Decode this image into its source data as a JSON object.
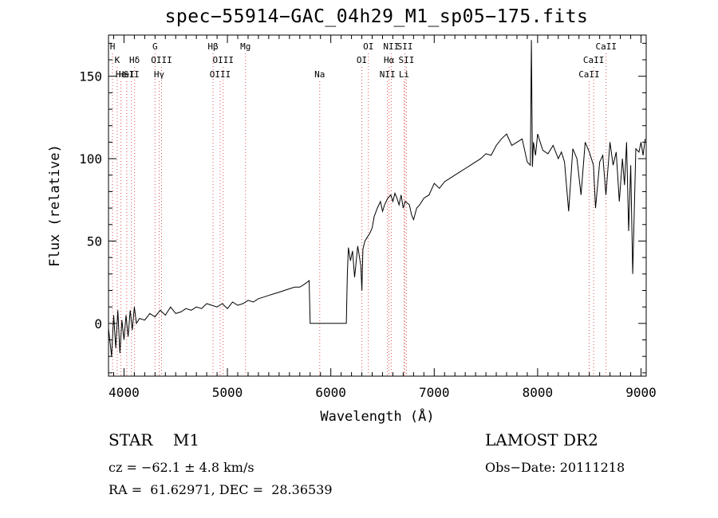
{
  "chart_data": {
    "type": "line",
    "title": "spec−55914−GAC_04h29_M1_sp05−175.fits",
    "xlabel": "Wavelength (Å)",
    "ylabel": "Flux (relative)",
    "xlim": [
      3850,
      9050
    ],
    "ylim": [
      -32,
      175
    ],
    "xticks": [
      4000,
      5000,
      6000,
      7000,
      8000,
      9000
    ],
    "yticks": [
      0,
      50,
      100,
      150
    ],
    "grid": false,
    "series": [
      {
        "x": [
          3850,
          3880,
          3900,
          3920,
          3940,
          3960,
          3980,
          4000,
          4020,
          4040,
          4060,
          4080,
          4100,
          4120,
          4150,
          4200,
          4250,
          4300,
          4350,
          4400,
          4450,
          4500,
          4550,
          4600,
          4650,
          4700,
          4750,
          4800,
          4850,
          4900,
          4950,
          5000,
          5050,
          5100,
          5150,
          5200,
          5250,
          5300,
          5350,
          5400,
          5450,
          5500,
          5550,
          5600,
          5650,
          5700,
          5750,
          5790,
          5800,
          5810,
          6150,
          6160,
          6170,
          6190,
          6210,
          6230,
          6260,
          6290,
          6300,
          6310,
          6330,
          6350,
          6380,
          6400,
          6420,
          6450,
          6480,
          6500,
          6520,
          6550,
          6580,
          6600,
          6620,
          6640,
          6660,
          6680,
          6700,
          6720,
          6740,
          6760,
          6780,
          6800,
          6830,
          6860,
          6900,
          6950,
          7000,
          7050,
          7100,
          7150,
          7200,
          7250,
          7300,
          7350,
          7400,
          7450,
          7500,
          7550,
          7600,
          7650,
          7700,
          7750,
          7800,
          7850,
          7900,
          7930,
          7940,
          7950,
          7960,
          7980,
          8000,
          8050,
          8100,
          8150,
          8200,
          8230,
          8260,
          8300,
          8340,
          8380,
          8420,
          8460,
          8500,
          8540,
          8560,
          8600,
          8630,
          8660,
          8700,
          8730,
          8760,
          8790,
          8820,
          8840,
          8860,
          8880,
          8900,
          8920,
          8950,
          8980,
          9000,
          9020,
          9040
        ],
        "y": [
          -3,
          -20,
          5,
          -15,
          8,
          -18,
          2,
          -10,
          5,
          -8,
          8,
          -4,
          10,
          0,
          3,
          2,
          6,
          4,
          8,
          5,
          10,
          6,
          7,
          9,
          8,
          10,
          9,
          12,
          11,
          10,
          12,
          9,
          13,
          11,
          12,
          14,
          13,
          15,
          16,
          17,
          18,
          19,
          20,
          21,
          22,
          22,
          24,
          26,
          0,
          0,
          0,
          30,
          46,
          38,
          44,
          28,
          47,
          35,
          20,
          45,
          50,
          52,
          55,
          58,
          65,
          70,
          74,
          68,
          72,
          76,
          78,
          74,
          79,
          76,
          72,
          78,
          70,
          74,
          73,
          72,
          66,
          63,
          70,
          72,
          76,
          78,
          85,
          82,
          86,
          88,
          90,
          92,
          94,
          96,
          98,
          100,
          103,
          102,
          108,
          112,
          115,
          108,
          110,
          112,
          98,
          96,
          172,
          95,
          110,
          102,
          115,
          105,
          103,
          108,
          100,
          104,
          98,
          68,
          106,
          100,
          78,
          110,
          104,
          96,
          70,
          98,
          102,
          78,
          110,
          96,
          104,
          74,
          100,
          84,
          110,
          56,
          96,
          30,
          106,
          104,
          110,
          102,
          112
        ]
      }
    ],
    "line_labels": [
      {
        "x": 3889,
        "label": "H",
        "row": 0
      },
      {
        "x": 3934,
        "label": "K",
        "row": 1
      },
      {
        "x": 3970,
        "label": "Hε",
        "row": 2
      },
      {
        "x": 4026,
        "label": "HeI",
        "row": 2
      },
      {
        "x": 4102,
        "label": "Hδ",
        "row": 1
      },
      {
        "x": 4072,
        "label": "SII",
        "row": 2
      },
      {
        "x": 4300,
        "label": "G",
        "row": 0
      },
      {
        "x": 4363,
        "label": "OIII",
        "row": 1
      },
      {
        "x": 4340,
        "label": "Hγ",
        "row": 2
      },
      {
        "x": 4861,
        "label": "Hβ",
        "row": 0
      },
      {
        "x": 4959,
        "label": "OIII",
        "row": 1
      },
      {
        "x": 4930,
        "label": "OIII",
        "row": 2
      },
      {
        "x": 5175,
        "label": "Mg",
        "row": 0
      },
      {
        "x": 5893,
        "label": "Na",
        "row": 2
      },
      {
        "x": 6363,
        "label": "OI",
        "row": 0
      },
      {
        "x": 6300,
        "label": "OI",
        "row": 1
      },
      {
        "x": 6584,
        "label": "NII",
        "row": 0
      },
      {
        "x": 6563,
        "label": "Hα",
        "row": 1
      },
      {
        "x": 6548,
        "label": "NII",
        "row": 2
      },
      {
        "x": 6717,
        "label": "SII",
        "row": 0
      },
      {
        "x": 6731,
        "label": "SII",
        "row": 1
      },
      {
        "x": 6708,
        "label": "Li",
        "row": 2
      },
      {
        "x": 8662,
        "label": "CaII",
        "row": 0
      },
      {
        "x": 8542,
        "label": "CaII",
        "row": 1
      },
      {
        "x": 8498,
        "label": "CaII",
        "row": 2
      }
    ]
  },
  "info": {
    "object_type": "STAR",
    "subclass": "M1",
    "survey": "LAMOST DR2",
    "cz": "cz = −62.1 ± 4.8 km/s",
    "obs_date": "Obs−Date: 20111218",
    "radec": "RA =  61.62971, DEC =  28.36539"
  }
}
